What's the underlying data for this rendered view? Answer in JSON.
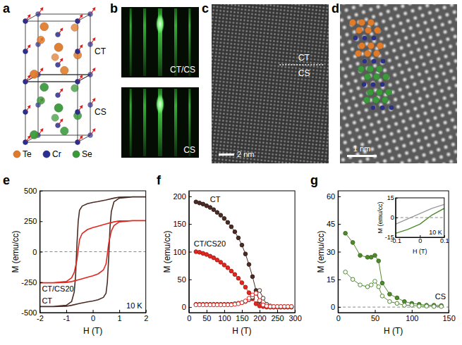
{
  "panels": {
    "a": {
      "letter": "a",
      "labels": [
        "CT",
        "CS"
      ],
      "atoms": [
        {
          "name": "Te",
          "color": "#e07b2a"
        },
        {
          "name": "Cr",
          "color": "#2b2f8f"
        },
        {
          "name": "Se",
          "color": "#3a9a3a"
        }
      ]
    },
    "b": {
      "letter": "b",
      "images": [
        "CT/CS",
        "CS"
      ]
    },
    "c": {
      "letter": "c",
      "labels": [
        "CT",
        "CS"
      ],
      "scale_bar": "2 nm"
    },
    "d": {
      "letter": "d",
      "scale_bar": "1 nm"
    }
  },
  "chart_data": [
    {
      "type": "line",
      "panel": "e",
      "x_label": "H (T)",
      "y_label": "M (emu/cc)",
      "xlim": [
        -2,
        2
      ],
      "xticks": [
        -2,
        -1,
        0,
        1,
        2
      ],
      "ylim": [
        -500,
        500
      ],
      "yticks": [
        -500,
        -250,
        0,
        250,
        500
      ],
      "annotations": [
        "10 K"
      ],
      "series": [
        {
          "name": "CT",
          "color": "#4a2c24",
          "line_style": "solid",
          "x": [
            2,
            1.5,
            1,
            0.8,
            0.5,
            0.2,
            0,
            -0.2,
            -0.4,
            -0.5,
            -0.55,
            -0.6,
            -0.65,
            -0.7,
            -0.8,
            -1,
            -1.5,
            -2,
            -1.5,
            -1,
            -0.8,
            -0.5,
            -0.2,
            0,
            0.2,
            0.4,
            0.5,
            0.55,
            0.6,
            0.65,
            0.7,
            0.8,
            1,
            1.5,
            2
          ],
          "values": [
            450,
            450,
            448,
            440,
            425,
            412,
            405,
            395,
            375,
            340,
            250,
            50,
            -200,
            -330,
            -410,
            -440,
            -450,
            -450,
            -450,
            -448,
            -440,
            -425,
            -412,
            -405,
            -395,
            -375,
            -340,
            -250,
            -50,
            200,
            330,
            410,
            440,
            450,
            450
          ]
        },
        {
          "name": "CT/CS20",
          "color": "#e3261f",
          "line_style": "solid",
          "x": [
            2,
            1.5,
            1,
            0.8,
            0.5,
            0.2,
            0,
            -0.2,
            -0.4,
            -0.5,
            -0.55,
            -0.6,
            -0.7,
            -0.8,
            -1,
            -1.5,
            -2,
            -1.5,
            -1,
            -0.8,
            -0.5,
            -0.2,
            0,
            0.2,
            0.4,
            0.5,
            0.55,
            0.6,
            0.7,
            0.8,
            1,
            1.5,
            2
          ],
          "values": [
            255,
            255,
            252,
            245,
            228,
            210,
            198,
            182,
            150,
            100,
            20,
            -70,
            -170,
            -215,
            -245,
            -255,
            -255,
            -255,
            -252,
            -245,
            -228,
            -210,
            -198,
            -182,
            -150,
            -100,
            -20,
            70,
            170,
            215,
            245,
            255,
            255
          ]
        }
      ]
    },
    {
      "type": "line",
      "panel": "f",
      "x_label": "H (T)",
      "y_label": "M (emu/cc)",
      "xlim": [
        0,
        300
      ],
      "xticks": [
        0,
        50,
        100,
        150,
        200,
        250,
        300
      ],
      "ylim": [
        -10,
        210
      ],
      "yticks": [
        0,
        50,
        100,
        150,
        200
      ],
      "x": [
        20,
        30,
        40,
        50,
        60,
        70,
        80,
        90,
        100,
        110,
        120,
        130,
        140,
        150,
        160,
        170,
        180,
        190,
        200,
        210,
        220,
        230,
        240,
        250,
        260,
        270,
        280,
        290
      ],
      "series": [
        {
          "name": "CT",
          "color": "#4a2c24",
          "marker": "circle",
          "values": [
            190,
            188,
            186,
            183,
            180,
            176,
            171,
            166,
            160,
            153,
            145,
            136,
            125,
            112,
            96,
            77,
            55,
            30,
            10,
            3,
            1,
            0,
            0,
            0,
            0,
            0,
            0,
            0
          ]
        },
        {
          "name": "CT/CS20",
          "color": "#e3261f",
          "marker": "circle",
          "values": [
            100,
            99,
            97,
            95,
            92,
            89,
            85,
            81,
            76,
            71,
            65,
            59,
            52,
            44,
            36,
            26,
            15,
            6,
            2,
            1,
            0,
            0,
            0,
            0,
            0,
            0,
            0,
            0
          ]
        },
        {
          "color": "#4a2c24",
          "marker": "open_circle",
          "values": [
            5,
            5,
            5,
            5,
            5,
            5,
            5,
            5,
            5,
            5,
            5,
            6,
            7,
            8,
            10,
            13,
            18,
            25,
            30,
            16,
            5,
            2,
            1,
            1,
            1,
            1,
            1,
            1
          ]
        },
        {
          "color": "#e3261f",
          "marker": "open_circle",
          "values": [
            4,
            4,
            4,
            4,
            4,
            4,
            4,
            4,
            4,
            4,
            4,
            5,
            6,
            8,
            11,
            16,
            22,
            25,
            12,
            4,
            2,
            1,
            1,
            1,
            1,
            1,
            1,
            1
          ]
        }
      ]
    },
    {
      "type": "line",
      "panel": "g",
      "x_label": "H (T)",
      "y_label": "M (emu/cc)",
      "xlim": [
        0,
        150
      ],
      "xticks": [
        0,
        50,
        100,
        150
      ],
      "ylim": [
        -3,
        63
      ],
      "yticks": [
        0,
        15,
        30,
        45,
        60
      ],
      "x": [
        10,
        20,
        30,
        40,
        45,
        50,
        55,
        60,
        70,
        80,
        90,
        100,
        110,
        120,
        130,
        140
      ],
      "series": [
        {
          "name": "CS",
          "color": "#4e8b2c",
          "marker": "circle",
          "values": [
            40,
            35,
            28,
            27,
            27,
            28,
            25,
            13,
            7,
            5,
            3,
            2,
            1.5,
            1,
            1,
            0.8
          ]
        },
        {
          "color": "#4e8b2c",
          "marker": "open_circle",
          "values": [
            19,
            15,
            12,
            11,
            12,
            14,
            11,
            6,
            3,
            2,
            1,
            1,
            0.5,
            0.5,
            0.3,
            0.3
          ]
        }
      ]
    },
    {
      "type": "line",
      "x_label": "H (T)",
      "y_label": "M (emu/cc)",
      "xlim": [
        -0.1,
        0.1
      ],
      "xticks": [
        -0.1,
        0,
        0.1
      ],
      "ylim": [
        -15,
        15
      ],
      "yticks": [
        -15,
        0,
        15
      ],
      "annotations": [
        "10 K"
      ],
      "x": [
        -0.1,
        -0.05,
        0,
        0.05,
        0.1
      ],
      "series": [
        {
          "color": "#9a9a9a",
          "values": [
            -5,
            -1,
            3,
            7,
            10
          ]
        },
        {
          "color": "#4e8b2c",
          "values": [
            -12,
            -9,
            -5,
            2,
            7
          ]
        }
      ]
    }
  ]
}
